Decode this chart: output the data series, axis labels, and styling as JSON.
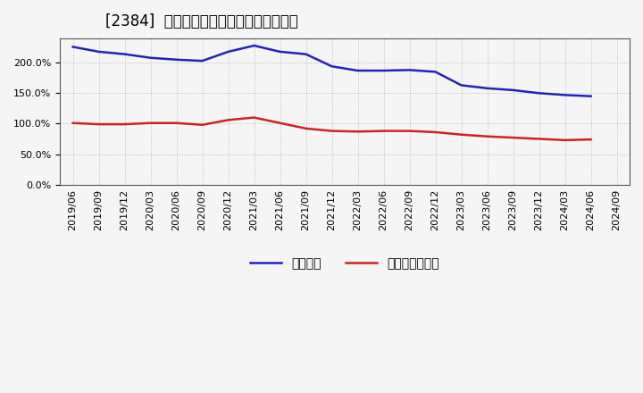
{
  "title": "[2384]  固定比率、固定長期適合率の推移",
  "blue_label": "固定比率",
  "red_label": "固定長期適合率",
  "blue_data": [
    [
      "2019/06",
      226
    ],
    [
      "2019/09",
      218
    ],
    [
      "2019/12",
      214
    ],
    [
      "2020/03",
      208
    ],
    [
      "2020/06",
      205
    ],
    [
      "2020/09",
      203
    ],
    [
      "2020/12",
      218
    ],
    [
      "2021/03",
      228
    ],
    [
      "2021/06",
      218
    ],
    [
      "2021/09",
      214
    ],
    [
      "2021/12",
      194
    ],
    [
      "2022/03",
      187
    ],
    [
      "2022/06",
      187
    ],
    [
      "2022/09",
      188
    ],
    [
      "2022/12",
      185
    ],
    [
      "2023/03",
      163
    ],
    [
      "2023/06",
      158
    ],
    [
      "2023/09",
      155
    ],
    [
      "2023/12",
      150
    ],
    [
      "2024/03",
      147
    ],
    [
      "2024/06",
      145
    ]
  ],
  "red_data": [
    [
      "2019/06",
      101
    ],
    [
      "2019/09",
      99
    ],
    [
      "2019/12",
      99
    ],
    [
      "2020/03",
      101
    ],
    [
      "2020/06",
      101
    ],
    [
      "2020/09",
      98
    ],
    [
      "2020/12",
      106
    ],
    [
      "2021/03",
      110
    ],
    [
      "2021/06",
      101
    ],
    [
      "2021/09",
      92
    ],
    [
      "2021/12",
      88
    ],
    [
      "2022/03",
      87
    ],
    [
      "2022/06",
      88
    ],
    [
      "2022/09",
      88
    ],
    [
      "2022/12",
      86
    ],
    [
      "2023/03",
      82
    ],
    [
      "2023/06",
      79
    ],
    [
      "2023/09",
      77
    ],
    [
      "2023/12",
      75
    ],
    [
      "2024/03",
      73
    ],
    [
      "2024/06",
      74
    ]
  ],
  "x_labels": [
    "2019/06",
    "2019/09",
    "2019/12",
    "2020/03",
    "2020/06",
    "2020/09",
    "2020/12",
    "2021/03",
    "2021/06",
    "2021/09",
    "2021/12",
    "2022/03",
    "2022/06",
    "2022/09",
    "2022/12",
    "2023/03",
    "2023/06",
    "2023/09",
    "2023/12",
    "2024/03",
    "2024/06",
    "2024/09"
  ],
  "ylim": [
    0,
    240
  ],
  "yticks": [
    0,
    50,
    100,
    150,
    200
  ],
  "bg_color": "#f5f5f5",
  "plot_bg_color": "#f5f5f5",
  "grid_color": "#bbbbbb",
  "blue_color": "#2222bb",
  "red_color": "#cc2222",
  "title_fontsize": 12,
  "axis_fontsize": 8,
  "legend_fontsize": 10
}
